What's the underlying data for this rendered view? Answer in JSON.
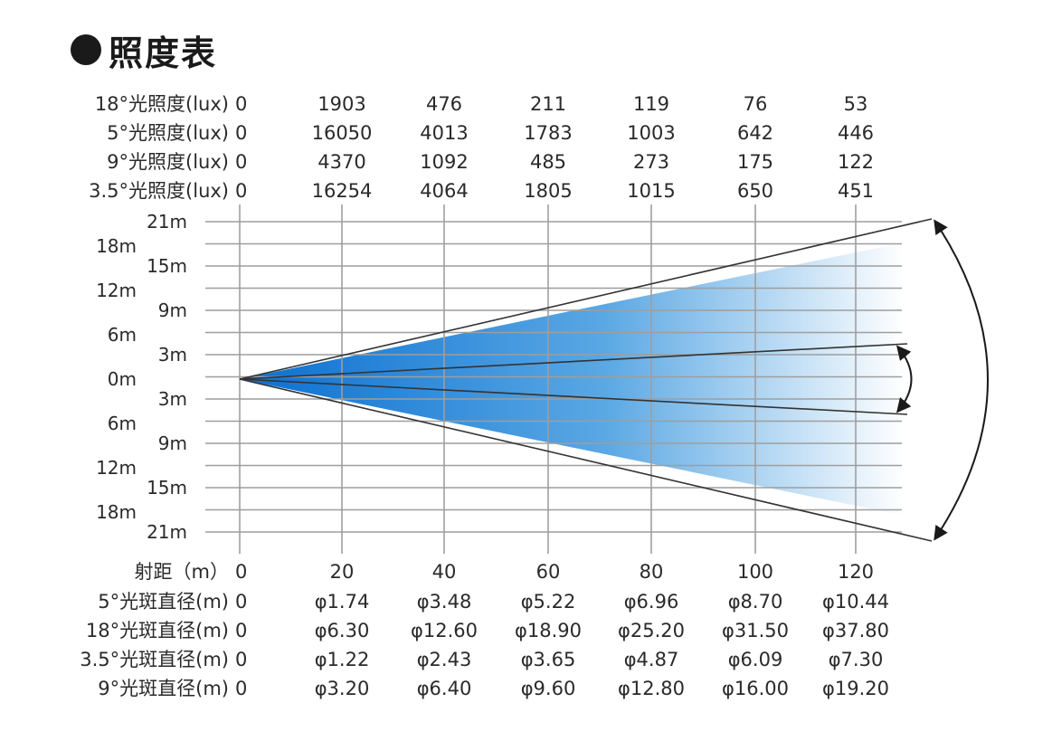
{
  "title": "照度表",
  "illuminance": {
    "rows": [
      {
        "label": "18°光照度(lux)",
        "values": [
          "0",
          "1903",
          "476",
          "211",
          "119",
          "76",
          "53"
        ]
      },
      {
        "label": "5°光照度(lux)",
        "values": [
          "0",
          "16050",
          "4013",
          "1783",
          "1003",
          "642",
          "446"
        ]
      },
      {
        "label": "9°光照度(lux)",
        "values": [
          "0",
          "4370",
          "1092",
          "485",
          "273",
          "175",
          "122"
        ]
      },
      {
        "label": "3.5°光照度(lux)",
        "values": [
          "0",
          "16254",
          "4064",
          "1805",
          "1015",
          "650",
          "451"
        ]
      }
    ]
  },
  "distance": {
    "label": "射距（m）",
    "values": [
      "0",
      "20",
      "40",
      "60",
      "80",
      "100",
      "120"
    ]
  },
  "spot": {
    "rows": [
      {
        "label": "5°光斑直径(m)",
        "values": [
          "0",
          "φ1.74",
          "φ3.48",
          "φ5.22",
          "φ6.96",
          "φ8.70",
          "φ10.44"
        ]
      },
      {
        "label": "18°光斑直径(m)",
        "values": [
          "0",
          "φ6.30",
          "φ12.60",
          "φ18.90",
          "φ25.20",
          "φ31.50",
          "φ37.80"
        ]
      },
      {
        "label": "3.5°光斑直径(m)",
        "values": [
          "0",
          "φ1.22",
          "φ2.43",
          "φ3.65",
          "φ4.87",
          "φ6.09",
          "φ7.30"
        ]
      },
      {
        "label": "9°光斑直径(m)",
        "values": [
          "0",
          "φ3.20",
          "φ6.40",
          "φ9.60",
          "φ12.80",
          "φ16.00",
          "φ19.20"
        ]
      }
    ]
  },
  "chart_data": {
    "type": "beam_diagram",
    "x_ticks": [
      0,
      20,
      40,
      60,
      80,
      100,
      120
    ],
    "x_max": 130,
    "y_ticks_outer": [
      "18m",
      "12m",
      "6m",
      "0m",
      "6m",
      "12m",
      "18m"
    ],
    "y_ticks_inner": [
      "21m",
      "15m",
      "9m",
      "3m",
      "3m",
      "9m",
      "15m",
      "21m"
    ],
    "colors": {
      "beam_start": "#0a6fd0",
      "beam_end": "#ffffff",
      "grid": "#9e9e9e",
      "line": "#333333"
    }
  }
}
